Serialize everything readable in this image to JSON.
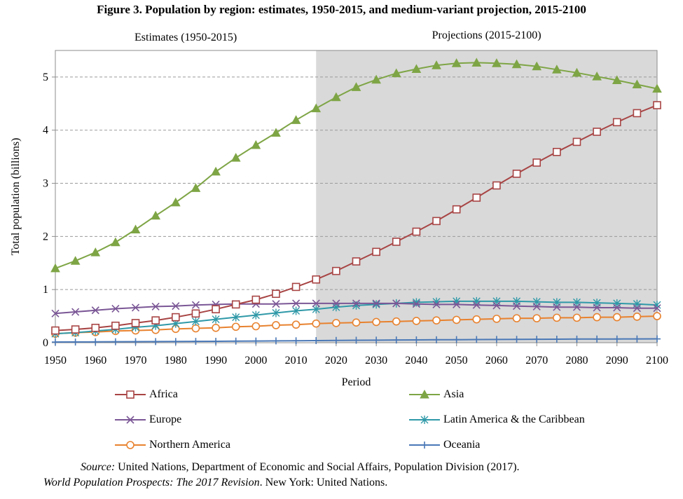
{
  "title": "Figure 3. Population by region: estimates, 1950-2015, and medium-variant projection, 2015-2100",
  "source": {
    "line1_label": "Source:",
    "line1_text": " United Nations, Department of Economic and Social Affairs, Population Division (2017).",
    "line2_italic": "World Population Prospects: The 2017 Revision",
    "line2_text": ". New York: United Nations."
  },
  "chart_data": {
    "type": "line",
    "title": "Figure 3. Population by region: estimates, 1950-2015, and medium-variant projection, 2015-2100",
    "xlabel": "Period",
    "ylabel": "Total population (billions)",
    "xlim": [
      1950,
      2100
    ],
    "ylim": [
      0,
      5.5
    ],
    "xticks": [
      1950,
      1960,
      1970,
      1980,
      1990,
      2000,
      2010,
      2020,
      2030,
      2040,
      2050,
      2060,
      2070,
      2080,
      2090,
      2100
    ],
    "yticks": [
      0,
      1,
      2,
      3,
      4,
      5
    ],
    "grid": "horizontal dashed",
    "annotations": {
      "estimates_label": "Estimates (1950-2015)",
      "projections_label": "Projections (2015-2100)",
      "projection_start": 2015
    },
    "colors": {
      "shade": "#d9d9d9",
      "Africa": "#a84444",
      "Asia": "#7ea545",
      "Europe": "#7b5796",
      "Latin America & the Caribbean": "#2f99a8",
      "Northern America": "#e8822f",
      "Oceania": "#4a78b6"
    },
    "x": [
      1950,
      1955,
      1960,
      1965,
      1970,
      1975,
      1980,
      1985,
      1990,
      1995,
      2000,
      2005,
      2010,
      2015,
      2020,
      2025,
      2030,
      2035,
      2040,
      2045,
      2050,
      2055,
      2060,
      2065,
      2070,
      2075,
      2080,
      2085,
      2090,
      2095,
      2100
    ],
    "series": [
      {
        "name": "Africa",
        "marker": "square-open",
        "values": [
          0.23,
          0.25,
          0.28,
          0.32,
          0.37,
          0.42,
          0.48,
          0.55,
          0.63,
          0.72,
          0.81,
          0.92,
          1.05,
          1.19,
          1.35,
          1.53,
          1.71,
          1.9,
          2.09,
          2.29,
          2.51,
          2.73,
          2.96,
          3.18,
          3.39,
          3.59,
          3.78,
          3.97,
          4.15,
          4.32,
          4.47
        ]
      },
      {
        "name": "Asia",
        "marker": "triangle-filled",
        "values": [
          1.4,
          1.54,
          1.7,
          1.89,
          2.13,
          2.39,
          2.64,
          2.91,
          3.22,
          3.48,
          3.72,
          3.95,
          4.19,
          4.41,
          4.62,
          4.81,
          4.95,
          5.07,
          5.15,
          5.22,
          5.26,
          5.27,
          5.26,
          5.24,
          5.2,
          5.14,
          5.08,
          5.01,
          4.94,
          4.86,
          4.78
        ]
      },
      {
        "name": "Europe",
        "marker": "x",
        "values": [
          0.55,
          0.58,
          0.61,
          0.64,
          0.66,
          0.68,
          0.69,
          0.71,
          0.72,
          0.73,
          0.73,
          0.73,
          0.74,
          0.74,
          0.74,
          0.74,
          0.74,
          0.74,
          0.73,
          0.72,
          0.72,
          0.71,
          0.7,
          0.69,
          0.68,
          0.67,
          0.67,
          0.66,
          0.66,
          0.65,
          0.65
        ]
      },
      {
        "name": "Latin America & the Caribbean",
        "marker": "asterisk",
        "values": [
          0.17,
          0.19,
          0.22,
          0.25,
          0.29,
          0.32,
          0.36,
          0.4,
          0.44,
          0.48,
          0.52,
          0.56,
          0.6,
          0.63,
          0.67,
          0.7,
          0.72,
          0.74,
          0.76,
          0.77,
          0.78,
          0.78,
          0.78,
          0.78,
          0.77,
          0.76,
          0.76,
          0.75,
          0.74,
          0.73,
          0.71
        ]
      },
      {
        "name": "Northern America",
        "marker": "circle-open",
        "values": [
          0.17,
          0.19,
          0.2,
          0.22,
          0.23,
          0.24,
          0.26,
          0.27,
          0.28,
          0.3,
          0.31,
          0.33,
          0.34,
          0.36,
          0.37,
          0.38,
          0.39,
          0.4,
          0.41,
          0.42,
          0.43,
          0.44,
          0.45,
          0.46,
          0.46,
          0.47,
          0.47,
          0.48,
          0.48,
          0.49,
          0.5
        ]
      },
      {
        "name": "Oceania",
        "marker": "plus",
        "values": [
          0.013,
          0.014,
          0.016,
          0.018,
          0.02,
          0.021,
          0.023,
          0.025,
          0.027,
          0.029,
          0.031,
          0.034,
          0.037,
          0.04,
          0.043,
          0.046,
          0.048,
          0.051,
          0.053,
          0.055,
          0.057,
          0.059,
          0.061,
          0.063,
          0.065,
          0.066,
          0.068,
          0.069,
          0.07,
          0.071,
          0.072
        ]
      }
    ],
    "legend": {
      "position": "bottom",
      "order": [
        "Africa",
        "Asia",
        "Europe",
        "Latin America & the Caribbean",
        "Northern America",
        "Oceania"
      ]
    }
  }
}
